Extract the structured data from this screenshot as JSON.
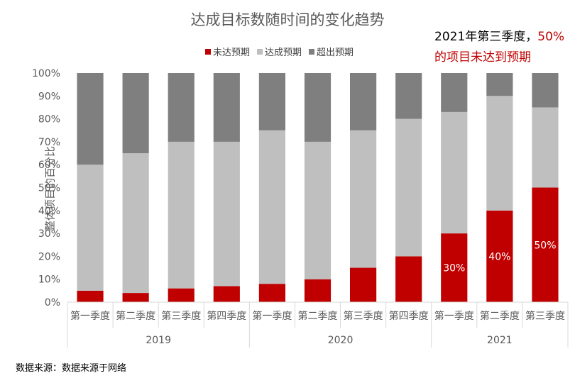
{
  "chart_data": {
    "type": "bar",
    "stacked": true,
    "title": "达成目标数随时间的变化趋势",
    "ylabel": "整体项目的百分比",
    "xlabel": "",
    "ylim": [
      0,
      100
    ],
    "yticks": [
      "0%",
      "10%",
      "20%",
      "30%",
      "40%",
      "50%",
      "60%",
      "70%",
      "80%",
      "90%",
      "100%"
    ],
    "categories": [
      "第一季度",
      "第二季度",
      "第三季度",
      "第四季度",
      "第一季度",
      "第二季度",
      "第三季度",
      "第四季度",
      "第一季度",
      "第二季度",
      "第三季度"
    ],
    "groups": [
      {
        "label": "2019",
        "count": 4
      },
      {
        "label": "2020",
        "count": 4
      },
      {
        "label": "2021",
        "count": 3
      }
    ],
    "series": [
      {
        "name": "未达预期",
        "color": "#c00000",
        "values": [
          5,
          4,
          6,
          7,
          8,
          10,
          15,
          20,
          30,
          40,
          50
        ]
      },
      {
        "name": "达成预期",
        "color": "#bfbfbf",
        "values": [
          55,
          61,
          64,
          63,
          67,
          60,
          60,
          60,
          53,
          50,
          35
        ]
      },
      {
        "name": "超出预期",
        "color": "#7f7f7f",
        "values": [
          40,
          35,
          30,
          30,
          25,
          30,
          25,
          20,
          17,
          10,
          15
        ]
      }
    ],
    "data_labels": [
      {
        "index": 8,
        "text": "30%"
      },
      {
        "index": 9,
        "text": "40%"
      },
      {
        "index": 10,
        "text": "50%"
      }
    ],
    "legend_position": "top"
  },
  "annotation": {
    "line1_prefix": "2021年第三季度，",
    "line1_highlight": "50%",
    "line2": "的项目未达到预期"
  },
  "source": "数据来源：数据来源于网络",
  "colors": {
    "accent": "#c00000",
    "mid": "#bfbfbf",
    "dark": "#7f7f7f"
  }
}
